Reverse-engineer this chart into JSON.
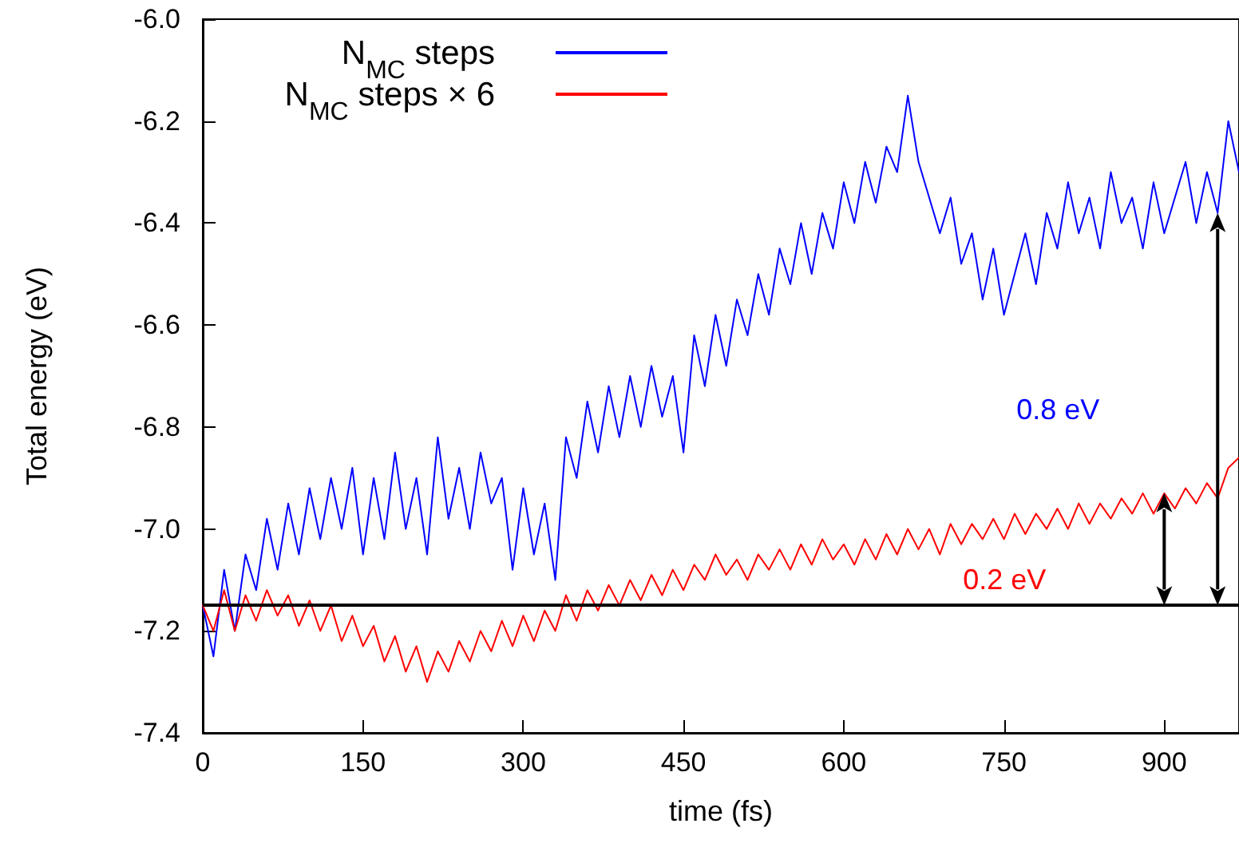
{
  "chart_data": {
    "type": "line",
    "xlabel": "time (fs)",
    "ylabel": "Total energy (eV)",
    "xlim": [
      0,
      970
    ],
    "xticks": [
      0,
      150,
      300,
      450,
      600,
      750,
      900
    ],
    "ylim": [
      -7.4,
      -6.0
    ],
    "yticks": [
      {
        "value": -7.4,
        "label": "-7.4"
      },
      -7.2,
      {
        "value": -7.0,
        "label": "-7.0"
      },
      -6.8,
      -6.6,
      -6.4,
      -6.2,
      {
        "value": -6.0,
        "label": "-6.0"
      }
    ],
    "x": [
      0,
      10,
      20,
      30,
      40,
      50,
      60,
      70,
      80,
      90,
      100,
      110,
      120,
      130,
      140,
      150,
      160,
      170,
      180,
      190,
      200,
      210,
      220,
      230,
      240,
      250,
      260,
      270,
      280,
      290,
      300,
      310,
      320,
      330,
      340,
      350,
      360,
      370,
      380,
      390,
      400,
      410,
      420,
      430,
      440,
      450,
      460,
      470,
      480,
      490,
      500,
      510,
      520,
      530,
      540,
      550,
      560,
      570,
      580,
      590,
      600,
      610,
      620,
      630,
      640,
      650,
      660,
      670,
      680,
      690,
      700,
      710,
      720,
      730,
      740,
      750,
      760,
      770,
      780,
      790,
      800,
      810,
      820,
      830,
      840,
      850,
      860,
      870,
      880,
      890,
      900,
      910,
      920,
      930,
      940,
      950,
      960,
      970
    ],
    "series": [
      {
        "name": "N$_{MC}$ steps",
        "color": "#0000ff",
        "values": [
          -7.15,
          -7.25,
          -7.08,
          -7.2,
          -7.05,
          -7.12,
          -6.98,
          -7.08,
          -6.95,
          -7.05,
          -6.92,
          -7.02,
          -6.9,
          -7.0,
          -6.88,
          -7.05,
          -6.9,
          -7.02,
          -6.85,
          -7.0,
          -6.9,
          -7.05,
          -6.82,
          -6.98,
          -6.88,
          -7.0,
          -6.85,
          -6.95,
          -6.9,
          -7.08,
          -6.92,
          -7.05,
          -6.95,
          -7.1,
          -6.82,
          -6.9,
          -6.75,
          -6.85,
          -6.72,
          -6.82,
          -6.7,
          -6.8,
          -6.68,
          -6.78,
          -6.7,
          -6.85,
          -6.62,
          -6.72,
          -6.58,
          -6.68,
          -6.55,
          -6.62,
          -6.5,
          -6.58,
          -6.45,
          -6.52,
          -6.4,
          -6.5,
          -6.38,
          -6.45,
          -6.32,
          -6.4,
          -6.28,
          -6.36,
          -6.25,
          -6.3,
          -6.15,
          -6.28,
          -6.35,
          -6.42,
          -6.35,
          -6.48,
          -6.42,
          -6.55,
          -6.45,
          -6.58,
          -6.5,
          -6.42,
          -6.52,
          -6.38,
          -6.45,
          -6.32,
          -6.42,
          -6.35,
          -6.45,
          -6.3,
          -6.4,
          -6.35,
          -6.45,
          -6.32,
          -6.42,
          -6.35,
          -6.28,
          -6.4,
          -6.3,
          -6.38,
          -6.2,
          -6.3
        ]
      },
      {
        "name": "N$_{MC}$ steps × 6",
        "color": "#ff0000",
        "values": [
          -7.15,
          -7.2,
          -7.12,
          -7.2,
          -7.13,
          -7.18,
          -7.12,
          -7.17,
          -7.13,
          -7.19,
          -7.14,
          -7.2,
          -7.15,
          -7.22,
          -7.17,
          -7.23,
          -7.19,
          -7.26,
          -7.21,
          -7.28,
          -7.23,
          -7.3,
          -7.24,
          -7.28,
          -7.22,
          -7.26,
          -7.2,
          -7.24,
          -7.18,
          -7.23,
          -7.17,
          -7.22,
          -7.16,
          -7.2,
          -7.13,
          -7.18,
          -7.12,
          -7.16,
          -7.11,
          -7.15,
          -7.1,
          -7.14,
          -7.09,
          -7.13,
          -7.08,
          -7.12,
          -7.07,
          -7.1,
          -7.05,
          -7.09,
          -7.06,
          -7.1,
          -7.05,
          -7.08,
          -7.04,
          -7.08,
          -7.03,
          -7.07,
          -7.02,
          -7.06,
          -7.03,
          -7.07,
          -7.02,
          -7.06,
          -7.01,
          -7.05,
          -7.0,
          -7.04,
          -7.0,
          -7.05,
          -6.99,
          -7.03,
          -6.99,
          -7.02,
          -6.98,
          -7.02,
          -6.97,
          -7.01,
          -6.97,
          -7.0,
          -6.96,
          -7.0,
          -6.95,
          -6.99,
          -6.95,
          -6.98,
          -6.94,
          -6.97,
          -6.93,
          -6.97,
          -6.93,
          -6.96,
          -6.92,
          -6.95,
          -6.91,
          -6.94,
          -6.88,
          -6.86
        ]
      }
    ],
    "ref_lines": [
      {
        "axis": "y",
        "value": -7.15,
        "color": "#000000"
      }
    ],
    "annotations": [
      "0.8 eV",
      "0.2 eV"
    ],
    "legend": "top",
    "grid": false,
    "marker": "none",
    "line_style": "solid"
  }
}
